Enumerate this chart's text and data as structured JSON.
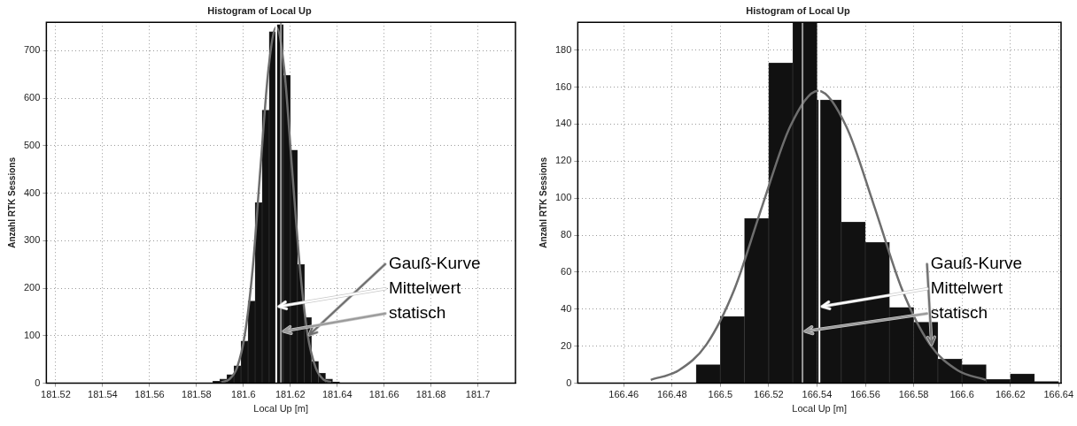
{
  "chart_data": [
    {
      "type": "histogram",
      "title": "Histogram of Local Up",
      "xlabel": "Local Up [m]",
      "ylabel": "Anzahl RTK Sessions",
      "bins": [
        181.587,
        181.59,
        181.593,
        181.596,
        181.599,
        181.602,
        181.605,
        181.608,
        181.611,
        181.614,
        181.617,
        181.62,
        181.623,
        181.626,
        181.629,
        181.632,
        181.635,
        181.638,
        181.641
      ],
      "values": [
        4,
        9,
        18,
        37,
        89,
        173,
        380,
        575,
        740,
        755,
        648,
        491,
        250,
        138,
        46,
        21,
        9,
        3
      ],
      "color": "#111111",
      "series": [
        {
          "name": "Gauß-Kurve",
          "type": "line",
          "color": "#6e6e6e",
          "x": [
            181.5906,
            181.5939,
            181.5973,
            181.6006,
            181.604,
            181.6073,
            181.6107,
            181.614,
            181.6174,
            181.6207,
            181.6241,
            181.6274,
            181.6308,
            181.6341,
            181.6375
          ],
          "values": [
            2,
            8,
            33,
            102,
            243,
            455,
            662,
            750,
            662,
            455,
            243,
            102,
            33,
            8,
            2
          ]
        }
      ],
      "ref_lines": [
        {
          "axis": "x",
          "value": 181.614,
          "label": "Mittelwert",
          "color": "#ffffff"
        },
        {
          "axis": "x",
          "value": 181.616,
          "label": "statisch",
          "color": "#9a9a9a"
        }
      ],
      "xlim": [
        181.516,
        181.716
      ],
      "ylim": [
        0,
        760
      ],
      "xticks": [
        181.52,
        181.54,
        181.56,
        181.58,
        181.6,
        181.62,
        181.64,
        181.66,
        181.68,
        181.7
      ],
      "yticks": [
        0,
        100,
        200,
        300,
        400,
        500,
        600,
        700
      ],
      "grid": true,
      "legend": false
    },
    {
      "type": "histogram",
      "title": "Histogram of Local Up",
      "xlabel": "Local Up [m]",
      "ylabel": "Anzahl RTK Sessions",
      "bins": [
        166.49,
        166.5,
        166.51,
        166.52,
        166.53,
        166.54,
        166.55,
        166.56,
        166.57,
        166.58,
        166.59,
        166.6,
        166.61,
        166.62,
        166.63,
        166.64
      ],
      "values": [
        10,
        36,
        89,
        173,
        195,
        153,
        87,
        76,
        41,
        33,
        13,
        10,
        2,
        5,
        1
      ],
      "color": "#111111",
      "series": [
        {
          "name": "Gauß-Kurve",
          "type": "line",
          "color": "#6e6e6e",
          "x": [
            166.4712,
            166.4828,
            166.4943,
            166.5059,
            166.5174,
            166.529,
            166.5405,
            166.552,
            166.5636,
            166.5751,
            166.5867,
            166.5982,
            166.6098
          ],
          "values": [
            1.8,
            7,
            21,
            51,
            96,
            139,
            158,
            139,
            96,
            51,
            21,
            7,
            1.8
          ]
        }
      ],
      "ref_lines": [
        {
          "axis": "x",
          "value": 166.541,
          "label": "Mittelwert",
          "color": "#ffffff"
        },
        {
          "axis": "x",
          "value": 166.534,
          "label": "statisch",
          "color": "#9a9a9a"
        }
      ],
      "xlim": [
        166.441,
        166.641
      ],
      "ylim": [
        0,
        195
      ],
      "xticks": [
        166.46,
        166.48,
        166.5,
        166.52,
        166.54,
        166.56,
        166.58,
        166.6,
        166.62,
        166.64
      ],
      "yticks": [
        0,
        20,
        40,
        60,
        80,
        100,
        120,
        140,
        160,
        180
      ],
      "grid": true,
      "legend": false
    }
  ]
}
